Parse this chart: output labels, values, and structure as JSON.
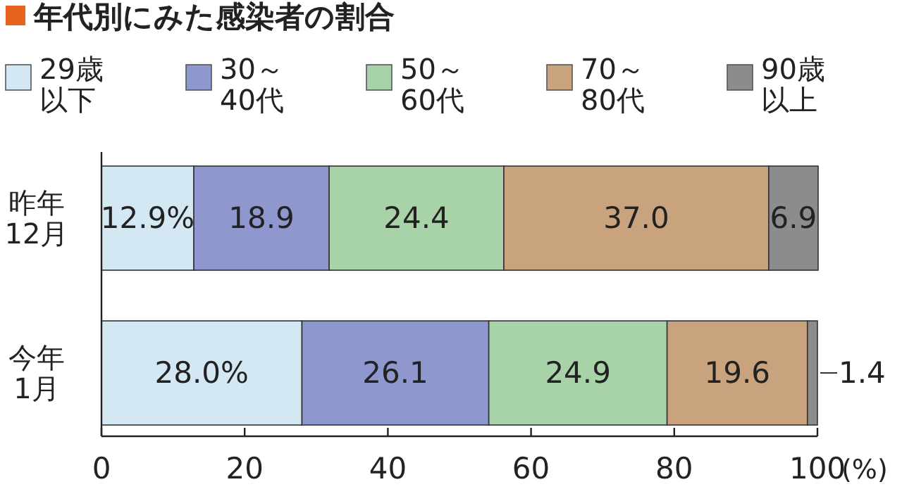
{
  "chart_data": {
    "type": "bar",
    "orientation": "horizontal",
    "stacked": true,
    "title": "年代別にみた感染者の割合",
    "xlabel": "(%)",
    "categories": [
      "昨年12月",
      "今年1月"
    ],
    "series": [
      {
        "name": "29歳以下",
        "color": "#d4e8f4",
        "values": [
          12.9,
          28.0
        ],
        "value_labels": [
          "12.9%",
          "28.0%"
        ]
      },
      {
        "name": "30～40代",
        "color": "#8e98cf",
        "values": [
          18.9,
          26.1
        ],
        "value_labels": [
          "18.9",
          "26.1"
        ]
      },
      {
        "name": "50～60代",
        "color": "#a8d2a8",
        "values": [
          24.4,
          24.9
        ],
        "value_labels": [
          "24.4",
          "24.9"
        ]
      },
      {
        "name": "70～80代",
        "color": "#c8a37e",
        "values": [
          37.0,
          19.6
        ],
        "value_labels": [
          "37.0",
          "19.6"
        ]
      },
      {
        "name": "90歳以上",
        "color": "#8c8c8c",
        "values": [
          6.9,
          1.4
        ],
        "value_labels": [
          "6.9",
          "1.4"
        ]
      }
    ],
    "xlim": [
      0,
      100
    ],
    "xticks": [
      0,
      20,
      40,
      60,
      80,
      100
    ],
    "legend": "top"
  }
}
